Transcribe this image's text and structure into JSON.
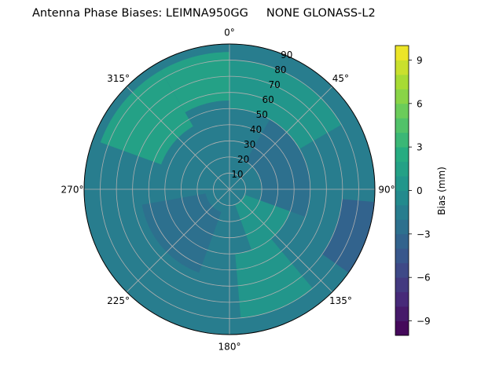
{
  "chart_data": {
    "type": "polar-contour",
    "title": "Antenna Phase Biases: LEIMNA950GG     NONE GLONASS-L2",
    "angular_ticks": [
      "0°",
      "45°",
      "90°",
      "135°",
      "180°",
      "225°",
      "270°",
      "315°"
    ],
    "radial_ticks": [
      "10",
      "20",
      "30",
      "40",
      "50",
      "60",
      "70",
      "80",
      "90"
    ],
    "radial_range": [
      0,
      90
    ],
    "grid": true,
    "colorbar": {
      "label": "Bias (mm)",
      "range": [
        -10,
        10
      ],
      "ticks": [
        "−9",
        "−6",
        "−3",
        "0",
        "3",
        "6",
        "9"
      ],
      "tick_values": [
        -9,
        -6,
        -3,
        0,
        3,
        6,
        9
      ],
      "colormap": "viridis"
    },
    "field_regions": [
      {
        "azimuth_deg": [
          0,
          360
        ],
        "zenith_deg": [
          0,
          90
        ],
        "bias_mm": -1.5
      },
      {
        "azimuth_deg": [
          330,
          360
        ],
        "zenith_deg": [
          55,
          85
        ],
        "bias_mm": 1.5
      },
      {
        "azimuth_deg": [
          0,
          60
        ],
        "zenith_deg": [
          50,
          80
        ],
        "bias_mm": 0.8
      },
      {
        "azimuth_deg": [
          290,
          330
        ],
        "zenith_deg": [
          45,
          85
        ],
        "bias_mm": 1.8
      },
      {
        "azimuth_deg": [
          30,
          110
        ],
        "zenith_deg": [
          20,
          50
        ],
        "bias_mm": -2.8
      },
      {
        "azimuth_deg": [
          200,
          260
        ],
        "zenith_deg": [
          15,
          55
        ],
        "bias_mm": -2.6
      },
      {
        "azimuth_deg": [
          110,
          160
        ],
        "zenith_deg": [
          10,
          40
        ],
        "bias_mm": 0.3
      },
      {
        "azimuth_deg": [
          140,
          175
        ],
        "zenith_deg": [
          40,
          80
        ],
        "bias_mm": 0.5
      },
      {
        "azimuth_deg": [
          95,
          125
        ],
        "zenith_deg": [
          70,
          90
        ],
        "bias_mm": -4.0
      }
    ]
  }
}
